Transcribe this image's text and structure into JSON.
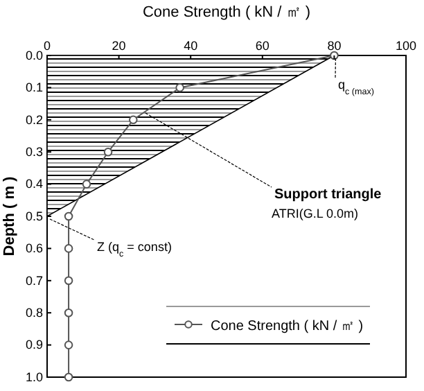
{
  "chart_data": {
    "type": "line",
    "xlabel": "Cone Strength ( kN / ㎡ )",
    "ylabel": "Depth ( m )",
    "xlim": [
      0,
      100
    ],
    "xticks": [
      0,
      20,
      40,
      60,
      80,
      100
    ],
    "ylim": [
      1.0,
      0.0
    ],
    "yticks": [
      {
        "value": 0,
        "label": "0.0"
      },
      {
        "value": 0.1,
        "label": "0.1"
      },
      {
        "value": 0.2,
        "label": "0.2"
      },
      {
        "value": 0.3,
        "label": "0.3"
      },
      {
        "value": 0.4,
        "label": "0.4"
      },
      {
        "value": 0.5,
        "label": "0.5"
      },
      {
        "value": 0.6,
        "label": "0.6"
      },
      {
        "value": 0.7,
        "label": "0.7"
      },
      {
        "value": 0.8,
        "label": "0.8"
      },
      {
        "value": 0.9,
        "label": "0.9"
      },
      {
        "value": 1.0,
        "label": "1.0"
      }
    ],
    "series": [
      {
        "type": "area",
        "color": "#000000",
        "x": [
          0,
          80
        ],
        "values": [
          0.5,
          0
        ]
      },
      {
        "name": "Cone Strength ( kN / ㎡ )",
        "color": "#555555",
        "marker": "circle",
        "x": [
          80,
          37,
          24,
          17,
          11,
          6,
          6,
          6,
          6,
          6,
          6
        ],
        "values": [
          0,
          0.1,
          0.2,
          0.3,
          0.4,
          0.5,
          0.6,
          0.7,
          0.8,
          0.9,
          1.0
        ]
      }
    ],
    "legend": "bottom right",
    "grid": false,
    "annotations": [
      {
        "text": "q$_{c (max)}$",
        "x": 80,
        "y": 0
      },
      {
        "text": "Support triangle",
        "x": 27,
        "y": 0.17
      },
      "ATRI(G.L 0.0m)",
      {
        "text": "Z (q$_{c}$ = const)",
        "x": 0,
        "y": 0.5
      }
    ]
  }
}
